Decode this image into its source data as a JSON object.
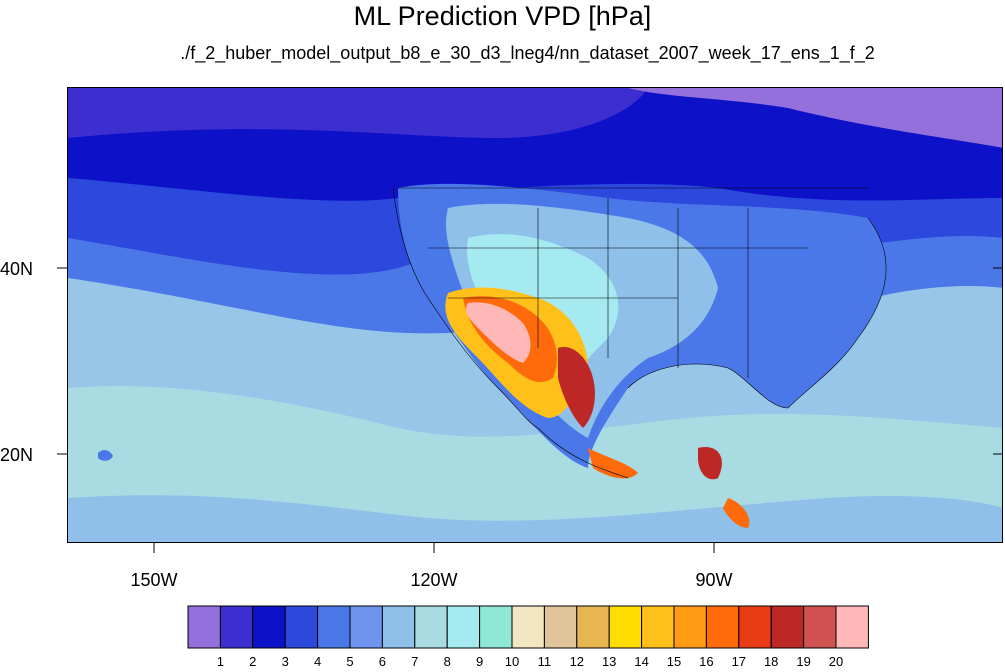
{
  "title": "ML Prediction VPD [hPa]",
  "subtitle": "./f_2_huber_model_output_b8_e_30_d3_lneg4/nn_dataset_2007_week_17_ens_1_f_2",
  "axes": {
    "lon_labels": [
      "150W",
      "120W",
      "90W"
    ],
    "lat_labels": [
      "40N",
      "20N"
    ]
  },
  "colorbar": {
    "labels": [
      "1",
      "2",
      "3",
      "4",
      "5",
      "6",
      "7",
      "8",
      "9",
      "10",
      "11",
      "12",
      "13",
      "14",
      "15",
      "16",
      "17",
      "18",
      "19",
      "20"
    ],
    "colors": [
      "#9370db",
      "#3c2ecf",
      "#0d12c8",
      "#2c48dd",
      "#4a78e8",
      "#6e94ee",
      "#8ec0ea",
      "#a8dbe2",
      "#a5eaf0",
      "#8fe8d6",
      "#f2e5c1",
      "#dfc49a",
      "#e8b651",
      "#ffdd00",
      "#ffc01a",
      "#ff9b14",
      "#ff6a0a",
      "#e93b15",
      "#bd2827",
      "#d05252",
      "#ffb8b8"
    ]
  }
}
